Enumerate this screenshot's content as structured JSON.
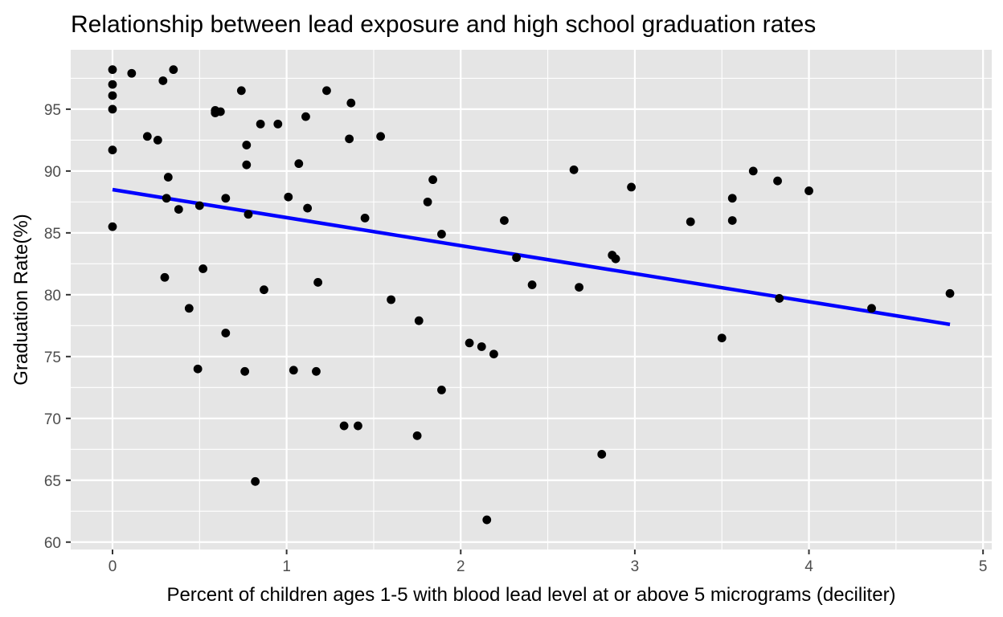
{
  "chart_data": {
    "type": "scatter",
    "title": "Relationship between lead exposure and high school graduation rates",
    "xlabel": "Percent of children ages 1-5 with blood lead level at or above 5 micrograms (deciliter)",
    "ylabel": "Graduation Rate(%)",
    "xlim": [
      -0.24,
      5.05
    ],
    "ylim": [
      59.4,
      99.8
    ],
    "x_ticks": [
      0,
      1,
      2,
      3,
      4,
      5
    ],
    "y_ticks": [
      60,
      65,
      70,
      75,
      80,
      85,
      90,
      95
    ],
    "grid": true,
    "background": "#e5e5e5",
    "point_color": "#000000",
    "fit_line": {
      "color": "#0000ff",
      "x": [
        0,
        4.81
      ],
      "y": [
        88.5,
        77.6
      ]
    },
    "points": [
      [
        0.0,
        98.2
      ],
      [
        0.0,
        97.0
      ],
      [
        0.0,
        96.1
      ],
      [
        0.0,
        95.0
      ],
      [
        0.0,
        91.7
      ],
      [
        0.0,
        85.5
      ],
      [
        0.11,
        97.9
      ],
      [
        0.2,
        92.8
      ],
      [
        0.26,
        92.5
      ],
      [
        0.29,
        97.3
      ],
      [
        0.3,
        81.4
      ],
      [
        0.31,
        87.8
      ],
      [
        0.32,
        89.5
      ],
      [
        0.35,
        98.2
      ],
      [
        0.38,
        86.9
      ],
      [
        0.44,
        78.9
      ],
      [
        0.49,
        74.0
      ],
      [
        0.5,
        87.2
      ],
      [
        0.52,
        82.1
      ],
      [
        0.59,
        94.9
      ],
      [
        0.59,
        94.7
      ],
      [
        0.62,
        94.8
      ],
      [
        0.65,
        87.8
      ],
      [
        0.65,
        76.9
      ],
      [
        0.74,
        96.5
      ],
      [
        0.77,
        92.1
      ],
      [
        0.77,
        90.5
      ],
      [
        0.76,
        73.8
      ],
      [
        0.78,
        86.5
      ],
      [
        0.82,
        64.9
      ],
      [
        0.85,
        93.8
      ],
      [
        0.87,
        80.4
      ],
      [
        0.95,
        93.8
      ],
      [
        1.01,
        87.9
      ],
      [
        1.04,
        73.9
      ],
      [
        1.07,
        90.6
      ],
      [
        1.11,
        94.4
      ],
      [
        1.12,
        87.0
      ],
      [
        1.17,
        73.8
      ],
      [
        1.18,
        81.0
      ],
      [
        1.23,
        96.5
      ],
      [
        1.33,
        69.4
      ],
      [
        1.36,
        92.6
      ],
      [
        1.37,
        95.5
      ],
      [
        1.41,
        69.4
      ],
      [
        1.45,
        86.2
      ],
      [
        1.54,
        92.8
      ],
      [
        1.6,
        79.6
      ],
      [
        1.75,
        68.6
      ],
      [
        1.76,
        77.9
      ],
      [
        1.81,
        87.5
      ],
      [
        1.84,
        89.3
      ],
      [
        1.89,
        84.9
      ],
      [
        1.89,
        72.3
      ],
      [
        2.05,
        76.1
      ],
      [
        2.12,
        75.8
      ],
      [
        2.15,
        61.8
      ],
      [
        2.19,
        75.2
      ],
      [
        2.25,
        86.0
      ],
      [
        2.32,
        83.0
      ],
      [
        2.41,
        80.8
      ],
      [
        2.65,
        90.1
      ],
      [
        2.68,
        80.6
      ],
      [
        2.81,
        67.1
      ],
      [
        2.87,
        83.2
      ],
      [
        2.89,
        82.9
      ],
      [
        2.98,
        88.7
      ],
      [
        3.32,
        85.9
      ],
      [
        3.5,
        76.5
      ],
      [
        3.56,
        87.8
      ],
      [
        3.56,
        86.0
      ],
      [
        3.68,
        90.0
      ],
      [
        3.82,
        89.2
      ],
      [
        3.83,
        79.7
      ],
      [
        4.0,
        88.4
      ],
      [
        4.36,
        78.9
      ],
      [
        4.81,
        80.1
      ]
    ]
  }
}
